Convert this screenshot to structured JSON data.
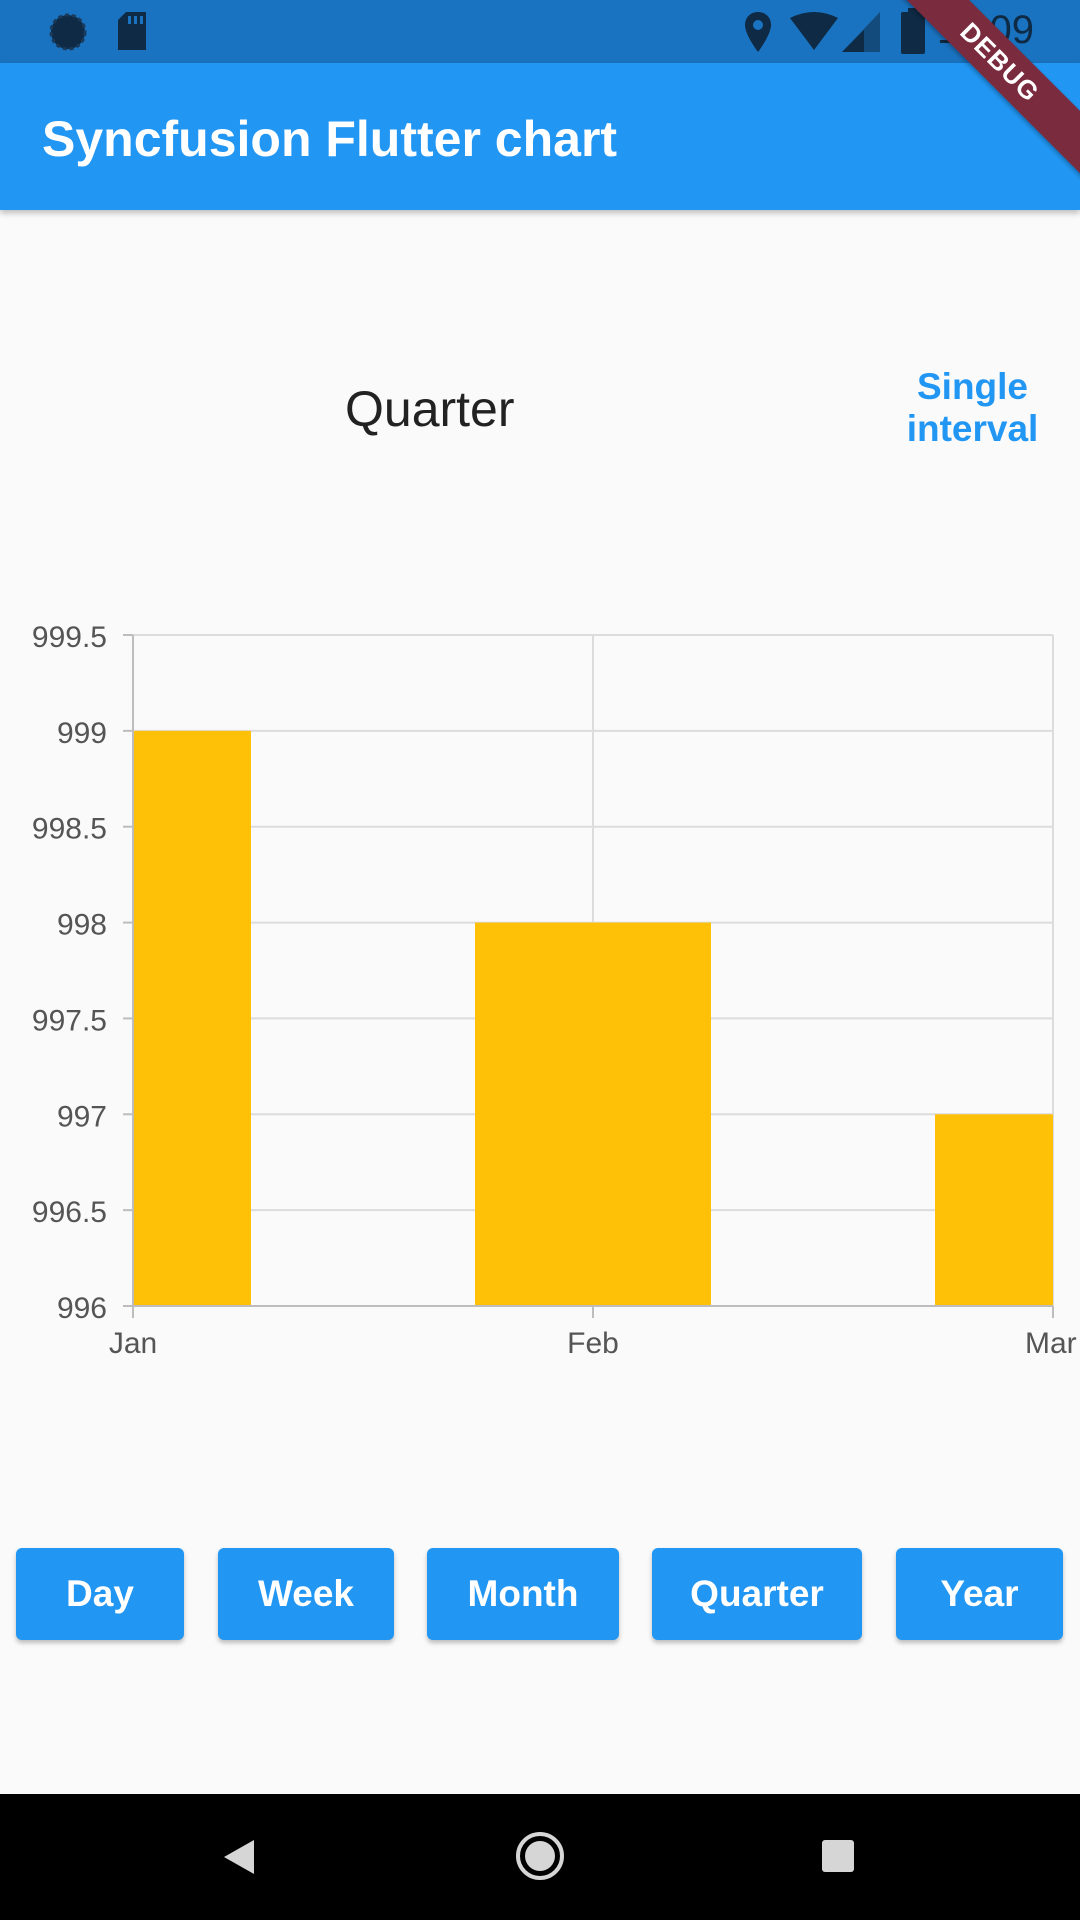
{
  "status_bar": {
    "time": "11:09",
    "icons": [
      "sync-icon",
      "sd-card-icon",
      "location-icon",
      "wifi-icon",
      "signal-icon",
      "battery-icon"
    ]
  },
  "app_bar": {
    "title": "Syncfusion Flutter chart"
  },
  "debug_banner": "DEBUG",
  "chart_header": {
    "title": "Quarter",
    "interval_link": "Single interval"
  },
  "chart_data": {
    "type": "bar",
    "categories": [
      "Jan",
      "Feb",
      "Mar"
    ],
    "values": [
      999,
      998,
      997
    ],
    "ylim": [
      996,
      999.5
    ],
    "yticks": [
      "996",
      "996.5",
      "997",
      "997.5",
      "998",
      "998.5",
      "999",
      "999.5"
    ],
    "grid": true,
    "bar_color": "#ffc107"
  },
  "buttons": [
    "Day",
    "Week",
    "Month",
    "Quarter",
    "Year"
  ],
  "colors": {
    "primary": "#2196f3",
    "status_bar": "#1a73c0",
    "bar": "#ffc107"
  }
}
